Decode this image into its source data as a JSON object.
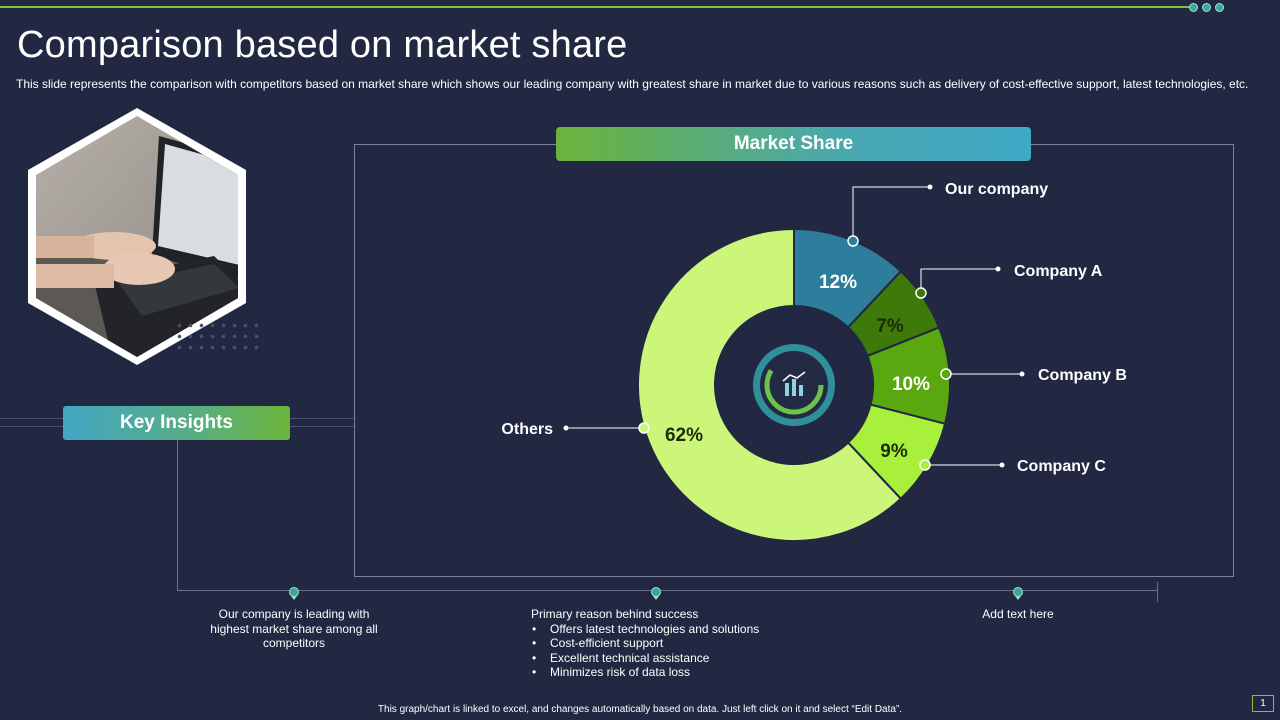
{
  "title": "Comparison based on market share",
  "subtitle": "This slide represents the comparison with competitors based on market share which shows our leading company with greatest share in market due to various reasons such as delivery of cost-effective support, latest technologies, etc.",
  "chart_header": "Market Share",
  "key_insights": {
    "label": "Key Insights",
    "items": [
      {
        "text": "Our company is leading with highest market share among all competitors"
      },
      {
        "heading": "Primary reason behind success",
        "bullets": [
          "Offers latest technologies and solutions",
          "Cost-efficient support",
          "Excellent technical assistance",
          "Minimizes risk of data loss"
        ]
      },
      {
        "text": "Add text here"
      }
    ]
  },
  "footer": "This graph/chart is linked to excel, and changes automatically based on data. Just left click on it and select “Edit Data”.",
  "page_number": "1",
  "colors": {
    "background": "#222842",
    "accent_green": "#7ec242",
    "our_company": "#2d7e9c",
    "company_a": "#3d7a0a",
    "company_b": "#5aa80f",
    "company_c": "#a8f03c",
    "others": "#ccf67a"
  },
  "chart_data": {
    "type": "pie",
    "title": "Market Share",
    "donut": true,
    "center_icon": "bar-chart-gauge-icon",
    "categories": [
      "Our company",
      "Company A",
      "Company B",
      "Company C",
      "Others"
    ],
    "values": [
      12,
      7,
      10,
      9,
      62
    ],
    "value_labels": [
      "12%",
      "7%",
      "10%",
      "9%",
      "62%"
    ]
  }
}
